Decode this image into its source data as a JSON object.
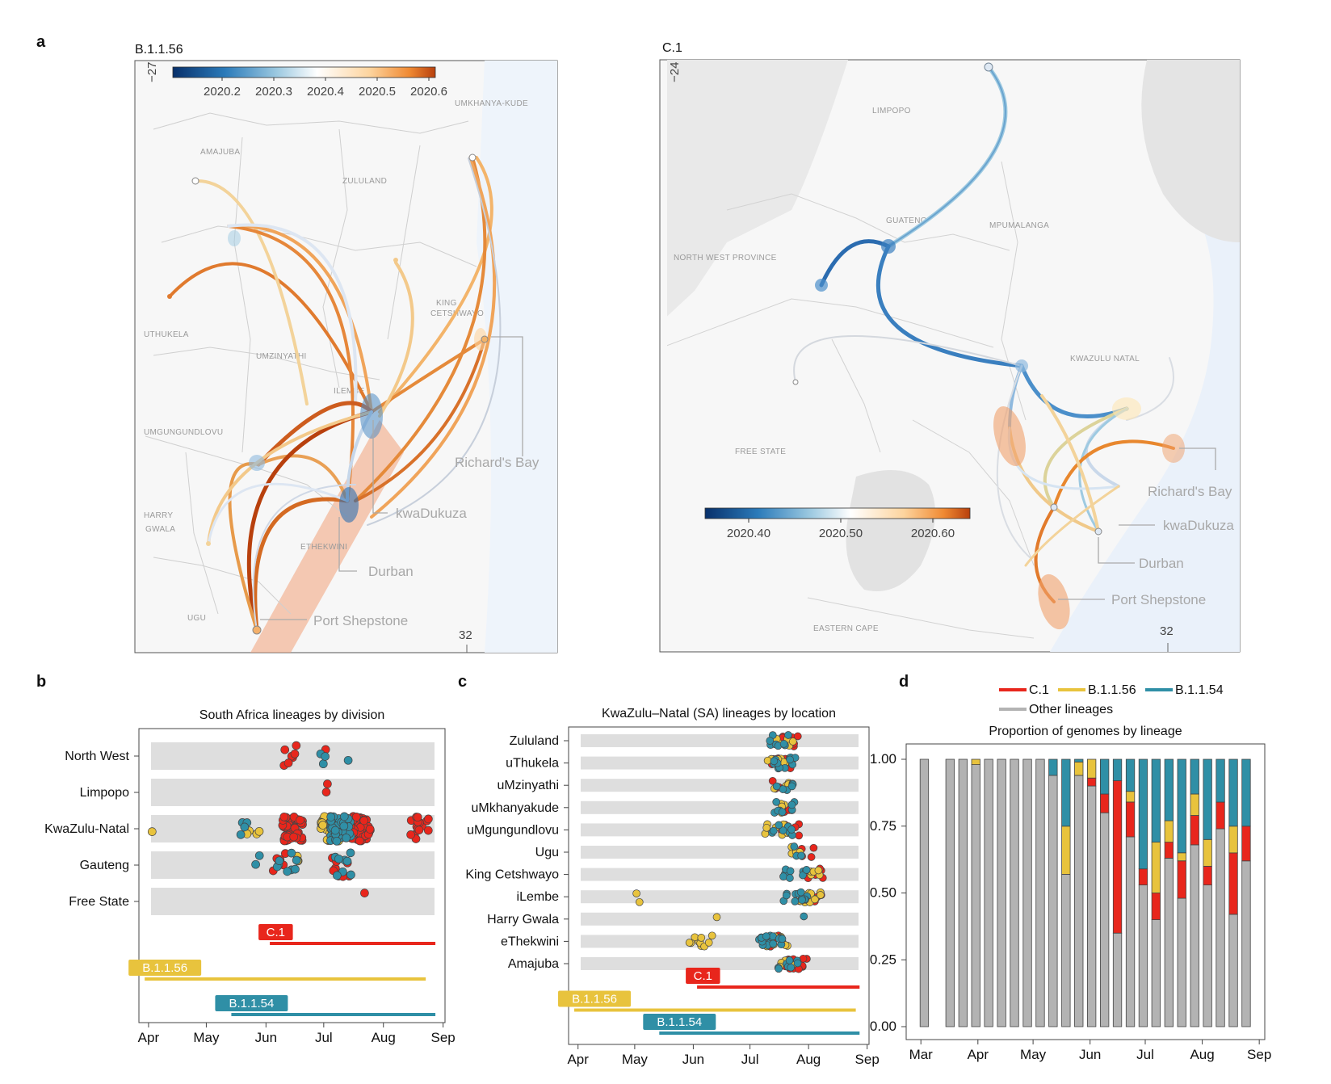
{
  "panel_labels": {
    "a": "a",
    "b": "b",
    "c": "c",
    "d": "d"
  },
  "maps": {
    "left": {
      "title": "B.1.1.56",
      "lat_label": "−27",
      "lon_label": "32",
      "colorbar_ticks": [
        "2020.2",
        "2020.3",
        "2020.4",
        "2020.5",
        "2020.6"
      ],
      "region_labels": [
        "UMKHANYA-KUDE",
        "AMAJUBA",
        "ZULULAND",
        "KING",
        "CETSHWAYO",
        "UTHUKELA",
        "UMZINYATHI",
        "ILEMBE",
        "UMGUNGUNDLOVU",
        "HARRY",
        "GWALA",
        "ETHEKWINI",
        "UGU"
      ],
      "city_labels": [
        "Richard's Bay",
        "kwaDukuza",
        "Durban",
        "Port Shepstone"
      ]
    },
    "right": {
      "title": "C.1",
      "lat_label": "−24",
      "lon_label": "32",
      "colorbar_ticks": [
        "2020.40",
        "2020.50",
        "2020.60"
      ],
      "region_labels": [
        "LIMPOPO",
        "GUATENG",
        "MPUMALANGA",
        "NORTH WEST PROVINCE",
        "KWAZULU NATAL",
        "FREE STATE",
        "EASTERN CAPE"
      ],
      "city_labels": [
        "Richard's Bay",
        "kwaDukuza",
        "Durban",
        "Port Shepstone"
      ]
    }
  },
  "colors": {
    "C.1": "#e8261c",
    "B.1.1.56": "#e8c33d",
    "B.1.1.54": "#2f8fa6",
    "Other lineages": "#b3b3b3"
  },
  "chart_data": [
    {
      "type": "scatter",
      "title": "South Africa lineages by division",
      "categories": [
        "North West",
        "Limpopo",
        "KwaZulu-Natal",
        "Gauteng",
        "Free State"
      ],
      "x_ticks": [
        "Apr",
        "May",
        "Jun",
        "Jul",
        "Aug",
        "Sep"
      ],
      "x_range": [
        "2020-03-27",
        "2020-09-02"
      ],
      "series": [
        {
          "name": "C.1",
          "points": [
            [
              "North West",
              "2020-06-15",
              7
            ],
            [
              "North West",
              "2020-07-02",
              1
            ],
            [
              "Limpopo",
              "2020-07-02",
              2
            ],
            [
              "KwaZulu-Natal",
              "2020-06-15",
              50
            ],
            [
              "KwaZulu-Natal",
              "2020-07-20",
              45
            ],
            [
              "KwaZulu-Natal",
              "2020-08-20",
              15
            ],
            [
              "Gauteng",
              "2020-06-08",
              5
            ],
            [
              "Gauteng",
              "2020-07-10",
              8
            ],
            [
              "Free State",
              "2020-07-23",
              1
            ]
          ]
        },
        {
          "name": "B.1.1.56",
          "points": [
            [
              "KwaZulu-Natal",
              "2020-04-01",
              1
            ],
            [
              "KwaZulu-Natal",
              "2020-05-25",
              4
            ],
            [
              "KwaZulu-Natal",
              "2020-07-05",
              45
            ],
            [
              "Gauteng",
              "2020-06-20",
              3
            ]
          ]
        },
        {
          "name": "B.1.1.54",
          "points": [
            [
              "North West",
              "2020-07-02",
              3
            ],
            [
              "North West",
              "2020-07-12",
              1
            ],
            [
              "KwaZulu-Natal",
              "2020-05-20",
              4
            ],
            [
              "KwaZulu-Natal",
              "2020-07-10",
              40
            ],
            [
              "Gauteng",
              "2020-05-28",
              2
            ],
            [
              "Gauteng",
              "2020-06-12",
              8
            ],
            [
              "Gauteng",
              "2020-07-10",
              8
            ]
          ]
        }
      ],
      "ranges": [
        {
          "name": "C.1",
          "start": "2020-06-03",
          "end": "2020-08-28"
        },
        {
          "name": "B.1.1.56",
          "start": "2020-03-30",
          "end": "2020-08-23"
        },
        {
          "name": "B.1.1.54",
          "start": "2020-05-14",
          "end": "2020-08-28"
        }
      ]
    },
    {
      "type": "scatter",
      "title": "KwaZulu–Natal (SA) lineages by location",
      "categories": [
        "Zululand",
        "uThukela",
        "uMzinyathi",
        "uMkhanyakude",
        "uMgungundlovu",
        "Ugu",
        "King Cetshwayo",
        "iLembe",
        "Harry Gwala",
        "eThekwini",
        "Amajuba"
      ],
      "x_ticks": [
        "Apr",
        "May",
        "Jun",
        "Jul",
        "Aug",
        "Sep"
      ],
      "x_range": [
        "2020-03-27",
        "2020-09-02"
      ],
      "series": [
        {
          "name": "C.1",
          "points": [
            [
              "Zululand",
              "2020-07-20",
              14
            ],
            [
              "uThukela",
              "2020-07-18",
              14
            ],
            [
              "uMzinyathi",
              "2020-07-18",
              6
            ],
            [
              "uMkhanyakude",
              "2020-07-20",
              3
            ],
            [
              "uMgungundlovu",
              "2020-07-22",
              5
            ],
            [
              "Ugu",
              "2020-08-01",
              4
            ],
            [
              "King Cetshwayo",
              "2020-08-05",
              6
            ],
            [
              "iLembe",
              "2020-08-05",
              5
            ],
            [
              "eThekwini",
              "2020-07-15",
              6
            ],
            [
              "Amajuba",
              "2020-07-25",
              14
            ]
          ]
        },
        {
          "name": "B.1.1.56",
          "points": [
            [
              "Zululand",
              "2020-07-20",
              5
            ],
            [
              "uThukela",
              "2020-07-15",
              8
            ],
            [
              "uMzinyathi",
              "2020-07-18",
              5
            ],
            [
              "uMkhanyakude",
              "2020-07-18",
              4
            ],
            [
              "uMgungundlovu",
              "2020-07-15",
              8
            ],
            [
              "Ugu",
              "2020-07-25",
              4
            ],
            [
              "King Cetshwayo",
              "2020-08-05",
              5
            ],
            [
              "iLembe",
              "2020-05-05",
              2
            ],
            [
              "iLembe",
              "2020-08-02",
              12
            ],
            [
              "Harry Gwala",
              "2020-06-15",
              1
            ],
            [
              "eThekwini",
              "2020-06-05",
              10
            ],
            [
              "eThekwini",
              "2020-07-15",
              8
            ],
            [
              "Amajuba",
              "2020-07-20",
              4
            ]
          ]
        },
        {
          "name": "B.1.1.54",
          "points": [
            [
              "Zululand",
              "2020-07-15",
              8
            ],
            [
              "uThukela",
              "2020-07-20",
              12
            ],
            [
              "uMzinyathi",
              "2020-07-18",
              6
            ],
            [
              "uMkhanyakude",
              "2020-07-20",
              8
            ],
            [
              "uMgungundlovu",
              "2020-07-18",
              8
            ],
            [
              "Ugu",
              "2020-07-25",
              3
            ],
            [
              "King Cetshwayo",
              "2020-07-25",
              10
            ],
            [
              "iLembe",
              "2020-07-25",
              12
            ],
            [
              "Harry Gwala",
              "2020-07-28",
              1
            ],
            [
              "eThekwini",
              "2020-07-12",
              18
            ],
            [
              "Amajuba",
              "2020-07-20",
              8
            ]
          ]
        }
      ],
      "ranges": [
        {
          "name": "C.1",
          "start": "2020-06-03",
          "end": "2020-08-28"
        },
        {
          "name": "B.1.1.56",
          "start": "2020-03-30",
          "end": "2020-08-26"
        },
        {
          "name": "B.1.1.54",
          "start": "2020-05-14",
          "end": "2020-08-28"
        }
      ]
    },
    {
      "type": "bar",
      "title": "Proportion of genomes by lineage",
      "ylim": [
        0,
        1
      ],
      "y_ticks": [
        "0.00",
        "0.25",
        "0.50",
        "0.75",
        "1.00"
      ],
      "x_ticks": [
        "Mar",
        "Apr",
        "May",
        "Jun",
        "Jul",
        "Aug",
        "Sep"
      ],
      "legend": [
        "C.1",
        "B.1.1.56",
        "B.1.1.54",
        "Other lineages"
      ],
      "weeks": [
        "2020-03-02",
        "2020-03-16",
        "2020-03-23",
        "2020-03-30",
        "2020-04-06",
        "2020-04-13",
        "2020-04-20",
        "2020-04-27",
        "2020-05-04",
        "2020-05-11",
        "2020-05-18",
        "2020-05-25",
        "2020-06-01",
        "2020-06-08",
        "2020-06-15",
        "2020-06-22",
        "2020-06-29",
        "2020-07-06",
        "2020-07-13",
        "2020-07-20",
        "2020-07-27",
        "2020-08-03",
        "2020-08-10",
        "2020-08-17",
        "2020-08-24"
      ],
      "series": [
        {
          "name": "Other lineages",
          "values": [
            1,
            1,
            1,
            0.98,
            1,
            1,
            1,
            1,
            1,
            0.94,
            0.57,
            0.94,
            0.9,
            0.8,
            0.35,
            0.71,
            0.53,
            0.4,
            0.63,
            0.48,
            0.68,
            0.53,
            0.74,
            0.42,
            0.62
          ]
        },
        {
          "name": "C.1",
          "values": [
            0,
            0,
            0,
            0,
            0,
            0,
            0,
            0,
            0,
            0,
            0,
            0,
            0.03,
            0.07,
            0.57,
            0.13,
            0.06,
            0.1,
            0.06,
            0.14,
            0.11,
            0.07,
            0.1,
            0.23,
            0.13
          ]
        },
        {
          "name": "B.1.1.56",
          "values": [
            0,
            0,
            0,
            0.02,
            0,
            0,
            0,
            0,
            0,
            0,
            0.18,
            0.05,
            0.07,
            0,
            0,
            0.04,
            0,
            0.19,
            0.08,
            0.03,
            0.08,
            0.1,
            0,
            0.1,
            0
          ]
        },
        {
          "name": "B.1.1.54",
          "values": [
            0,
            0,
            0,
            0,
            0,
            0,
            0,
            0,
            0,
            0.06,
            0.25,
            0.01,
            0,
            0.13,
            0.08,
            0.12,
            0.41,
            0.31,
            0.23,
            0.35,
            0.13,
            0.3,
            0.16,
            0.25,
            0.25
          ]
        }
      ]
    }
  ]
}
